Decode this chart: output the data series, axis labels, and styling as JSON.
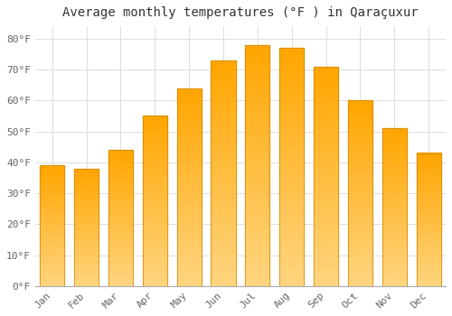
{
  "title": "Average monthly temperatures (°F ) in Qaraçuxur",
  "months": [
    "Jan",
    "Feb",
    "Mar",
    "Apr",
    "May",
    "Jun",
    "Jul",
    "Aug",
    "Sep",
    "Oct",
    "Nov",
    "Dec"
  ],
  "values": [
    39,
    38,
    44,
    55,
    64,
    73,
    78,
    77,
    71,
    60,
    51,
    43
  ],
  "bar_color_top": "#FFA500",
  "bar_color_bottom": "#FFD580",
  "bar_edge_color": "#C8870A",
  "background_color": "#FFFFFF",
  "grid_color": "#DDDDDD",
  "yticks": [
    0,
    10,
    20,
    30,
    40,
    50,
    60,
    70,
    80
  ],
  "ylim": [
    0,
    84
  ],
  "title_fontsize": 10,
  "tick_fontsize": 8,
  "font_family": "monospace",
  "tick_color": "#666666"
}
